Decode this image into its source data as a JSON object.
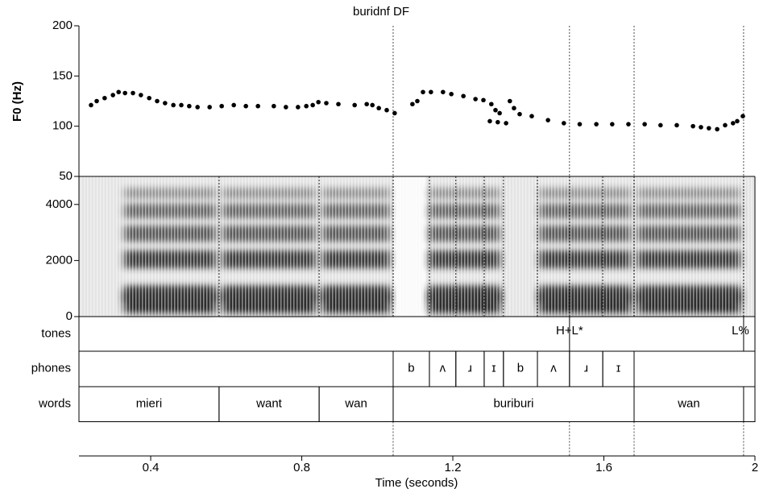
{
  "chart_data": {
    "type": "scatter",
    "title": "buridnf DF",
    "ylabel": "F0 (Hz)",
    "xlabel": "Time (seconds)",
    "color": "#000000",
    "xlim": [
      0.21,
      2
    ],
    "xticks": [
      0.4,
      0.8,
      1.2,
      1.6,
      2
    ],
    "ylim": [
      50,
      200
    ],
    "yticks": [
      50,
      100,
      150,
      200
    ],
    "x": [
      0.242,
      0.257,
      0.278,
      0.3,
      0.315,
      0.332,
      0.353,
      0.374,
      0.396,
      0.417,
      0.438,
      0.46,
      0.481,
      0.502,
      0.524,
      0.556,
      0.588,
      0.62,
      0.652,
      0.684,
      0.726,
      0.758,
      0.79,
      0.812,
      0.829,
      0.844,
      0.865,
      0.897,
      0.94,
      0.972,
      0.987,
      1.004,
      1.025,
      1.046,
      1.093,
      1.106,
      1.121,
      1.142,
      1.174,
      1.196,
      1.228,
      1.26,
      1.281,
      1.302,
      1.313,
      1.324,
      1.298,
      1.319,
      1.341,
      1.351,
      1.362,
      1.377,
      1.409,
      1.452,
      1.494,
      1.536,
      1.58,
      1.622,
      1.665,
      1.708,
      1.75,
      1.793,
      1.836,
      1.857,
      1.878,
      1.9,
      1.921,
      1.942,
      1.953,
      1.968
    ],
    "values": [
      121,
      125,
      128,
      131,
      134,
      133,
      133,
      131,
      128,
      125,
      123,
      121,
      121,
      120,
      119,
      119,
      120,
      121,
      120,
      120,
      120,
      119,
      119,
      120,
      121,
      124,
      123,
      122,
      121,
      122,
      121,
      118,
      116,
      113,
      122,
      125,
      134,
      134,
      134,
      132,
      130,
      127,
      126,
      122,
      116,
      113,
      105,
      104,
      103,
      125,
      118,
      112,
      110,
      106,
      103,
      102,
      102,
      102,
      102,
      102,
      101,
      101,
      100,
      99,
      98,
      97,
      101,
      103,
      105,
      110
    ],
    "spectrogram": {
      "ylim": [
        0,
        5000
      ],
      "yticks": [
        0,
        2000,
        4000
      ]
    },
    "tiers": [
      {
        "name": "tones",
        "points": [
          {
            "time": 1.509,
            "label": "H+L*"
          },
          {
            "time": 1.97,
            "label": "L%"
          }
        ]
      },
      {
        "name": "phones",
        "intervals": [
          {
            "start": 1.042,
            "end": 1.138,
            "label": "b"
          },
          {
            "start": 1.138,
            "end": 1.208,
            "label": "ʌ"
          },
          {
            "start": 1.208,
            "end": 1.283,
            "label": "ɹ"
          },
          {
            "start": 1.283,
            "end": 1.334,
            "label": "ɪ"
          },
          {
            "start": 1.334,
            "end": 1.424,
            "label": "b"
          },
          {
            "start": 1.424,
            "end": 1.509,
            "label": "ʌ"
          },
          {
            "start": 1.509,
            "end": 1.597,
            "label": "ɹ"
          },
          {
            "start": 1.597,
            "end": 1.68,
            "label": "ɪ"
          }
        ]
      },
      {
        "name": "words",
        "intervals": [
          {
            "start": 0.21,
            "end": 0.581,
            "label": "mieri"
          },
          {
            "start": 0.581,
            "end": 0.846,
            "label": "want"
          },
          {
            "start": 0.846,
            "end": 1.042,
            "label": "wan"
          },
          {
            "start": 1.042,
            "end": 1.68,
            "label": "buriburi"
          },
          {
            "start": 1.68,
            "end": 1.97,
            "label": "wan"
          }
        ]
      }
    ]
  }
}
